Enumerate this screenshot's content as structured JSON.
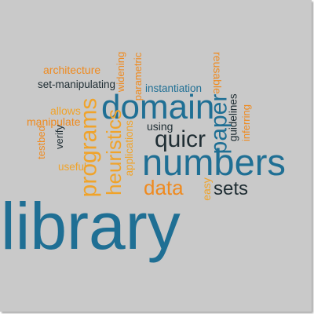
{
  "words": [
    {
      "id": "architecture",
      "text": "architecture",
      "color": "#ef8a1f"
    },
    {
      "id": "set-manipulating",
      "text": "set-manipulating",
      "color": "#1f2d33"
    },
    {
      "id": "widening",
      "text": "widening",
      "color": "#ef8a1f"
    },
    {
      "id": "parametric",
      "text": "parametric",
      "color": "#ef8a1f"
    },
    {
      "id": "reusable",
      "text": "reusable",
      "color": "#ef8a1f"
    },
    {
      "id": "instantiation",
      "text": "instantiation",
      "color": "#1f6f94"
    },
    {
      "id": "allows",
      "text": "allows",
      "color": "#f0a32a"
    },
    {
      "id": "manipulate",
      "text": "manipulate",
      "color": "#ef8a1f"
    },
    {
      "id": "domain",
      "text": "domain",
      "color": "#1f6f94"
    },
    {
      "id": "paper",
      "text": "paper",
      "color": "#1f6f94"
    },
    {
      "id": "guidelines",
      "text": "guidelines",
      "color": "#1f2d33"
    },
    {
      "id": "inferring",
      "text": "inferring",
      "color": "#ef8a1f"
    },
    {
      "id": "testbed",
      "text": "testbed",
      "color": "#ef8a1f"
    },
    {
      "id": "verify",
      "text": "verify",
      "color": "#1f2d33"
    },
    {
      "id": "using",
      "text": "using",
      "color": "#1f2d33"
    },
    {
      "id": "programs",
      "text": "programs",
      "color": "#f0a32a"
    },
    {
      "id": "heuristics",
      "text": "heuristics",
      "color": "#f0a32a"
    },
    {
      "id": "applications",
      "text": "applications",
      "color": "#f0a32a"
    },
    {
      "id": "quicr",
      "text": "quicr",
      "color": "#1f2d33"
    },
    {
      "id": "useful",
      "text": "useful",
      "color": "#f0a32a"
    },
    {
      "id": "numbers",
      "text": "numbers",
      "color": "#1f6f94"
    },
    {
      "id": "data",
      "text": "data",
      "color": "#ef8a1f"
    },
    {
      "id": "easy",
      "text": "easy",
      "color": "#f0a32a"
    },
    {
      "id": "sets",
      "text": "sets",
      "color": "#1f2d33"
    },
    {
      "id": "library",
      "text": "library",
      "color": "#1f6f94"
    }
  ]
}
